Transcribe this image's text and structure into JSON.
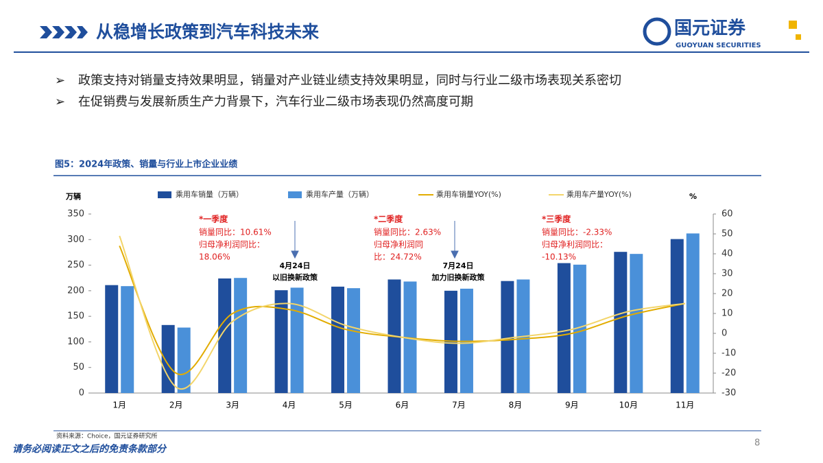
{
  "header": {
    "title": "从稳增长政策到汽车科技未来",
    "logo": "国元证券",
    "logo_en": "GUOYUAN SECURITIES"
  },
  "bullets": [
    "政策支持对销量支持效果明显，销量对产业链业绩支持效果明显，同时与行业二级市场表现关系密切",
    "在促销费与发展新质生产力背景下，汽车行业二级市场表现仍然高度可期"
  ],
  "figure_title": "图5：2024年政策、销量与行业上市企业业绩",
  "chart_data": {
    "type": "bar",
    "y_label": "万辆",
    "y2_label": "%",
    "categories": [
      "1月",
      "2月",
      "3月",
      "4月",
      "5月",
      "6月",
      "7月",
      "8月",
      "9月",
      "10月",
      "11月"
    ],
    "series": [
      {
        "name": "乘用车销量（万辆）",
        "color": "#1f4e9c",
        "type": "bar",
        "values": [
          211,
          133,
          224,
          201,
          208,
          222,
          200,
          219,
          254,
          276,
          301
        ]
      },
      {
        "name": "乘用车产量（万辆）",
        "color": "#4a90d9",
        "type": "bar",
        "values": [
          209,
          128,
          225,
          206,
          205,
          218,
          204,
          222,
          251,
          272,
          312
        ]
      },
      {
        "name": "乘用车销量YOY(%)",
        "color": "#e2ac00",
        "type": "line",
        "axis": "y2",
        "values": [
          44,
          -20,
          10,
          12,
          2,
          -2,
          -4,
          -3,
          0,
          9,
          15
        ]
      },
      {
        "name": "乘用车产量YOY(%)",
        "color": "#f3d56a",
        "type": "line",
        "axis": "y2",
        "values": [
          49,
          -27,
          6,
          15,
          4,
          -2,
          -5,
          -2,
          2,
          11,
          15
        ]
      }
    ],
    "ylim": [
      0,
      350
    ],
    "yticks": [
      0,
      50,
      100,
      150,
      200,
      250,
      300,
      350
    ],
    "y2lim": [
      -30,
      60
    ],
    "y2ticks": [
      -30,
      -20,
      -10,
      0,
      10,
      20,
      30,
      40,
      50,
      60
    ],
    "annotations": [
      {
        "title": "*一季度",
        "lines": [
          "销量同比：10.61%",
          "归母净利润同比：",
          "18.06%"
        ]
      },
      {
        "title": "*二季度",
        "lines": [
          "销量同比：2.63%",
          "归母净利润同",
          "比：24.72%"
        ]
      },
      {
        "title": "*三季度",
        "lines": [
          "销量同比：-2.33%",
          "归母净利润同比：",
          "-10.13%"
        ]
      }
    ],
    "policies": [
      {
        "lines": [
          "4月24日",
          "以旧换新政策"
        ]
      },
      {
        "lines": [
          "7月24日",
          "加力旧换新政策"
        ]
      }
    ]
  },
  "source": "资料来源：Choice，国元证券研究所",
  "footer": "请务必阅读正文之后的免责条款部分",
  "page_number": "8"
}
